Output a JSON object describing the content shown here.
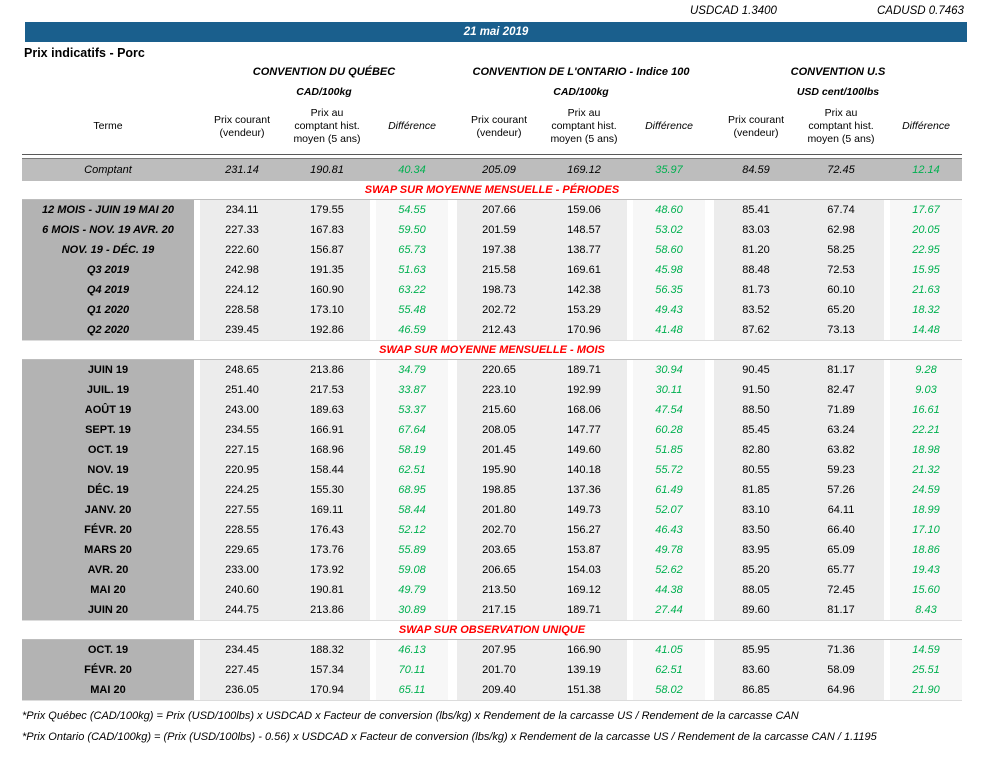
{
  "fx": {
    "usdcad": "USDCAD 1.3400",
    "cadusd": "CADUSD 0.7463"
  },
  "banner": {
    "date": "21 mai 2019"
  },
  "page_title": "Prix indicatifs - Porc",
  "colors": {
    "banner_blue": "#1a5f8d",
    "label_gray": "#b3b3b3",
    "comptant_gray": "#bdbdbd",
    "cell_gray": "#ececec",
    "diff_bg": "#f7f7f7",
    "positive_green": "#00b050",
    "section_red": "#ff0000"
  },
  "table": {
    "groups": [
      {
        "title": "CONVENTION DU QUÉBEC",
        "unit": "CAD/100kg"
      },
      {
        "title": "CONVENTION DE L'ONTARIO - Indice 100",
        "unit": "CAD/100kg"
      },
      {
        "title": "CONVENTION U.S",
        "unit": "USD cent/100lbs"
      }
    ],
    "columns": {
      "terme": "Terme",
      "prix_courant": "Prix courant\n(vendeur)",
      "prix_comptant": "Prix au\ncomptant hist.\nmoyen (5 ans)",
      "difference": "Différence"
    },
    "comptant": {
      "label": "Comptant",
      "values": [
        "231.14",
        "190.81",
        "40.34",
        "205.09",
        "169.12",
        "35.97",
        "84.59",
        "72.45",
        "12.14"
      ]
    },
    "sections": [
      {
        "header": "SWAP SUR MOYENNE MENSUELLE - PÉRIODES",
        "label_italic": true,
        "rows": [
          {
            "label": "12 MOIS -  JUIN 19 MAI 20",
            "values": [
              "234.11",
              "179.55",
              "54.55",
              "207.66",
              "159.06",
              "48.60",
              "85.41",
              "67.74",
              "17.67"
            ]
          },
          {
            "label": "6 MOIS -  NOV. 19 AVR. 20",
            "values": [
              "227.33",
              "167.83",
              "59.50",
              "201.59",
              "148.57",
              "53.02",
              "83.03",
              "62.98",
              "20.05"
            ]
          },
          {
            "label": "NOV. 19 -  DÉC. 19",
            "values": [
              "222.60",
              "156.87",
              "65.73",
              "197.38",
              "138.77",
              "58.60",
              "81.20",
              "58.25",
              "22.95"
            ]
          },
          {
            "label": "Q3 2019",
            "values": [
              "242.98",
              "191.35",
              "51.63",
              "215.58",
              "169.61",
              "45.98",
              "88.48",
              "72.53",
              "15.95"
            ]
          },
          {
            "label": "Q4 2019",
            "values": [
              "224.12",
              "160.90",
              "63.22",
              "198.73",
              "142.38",
              "56.35",
              "81.73",
              "60.10",
              "21.63"
            ]
          },
          {
            "label": "Q1 2020",
            "values": [
              "228.58",
              "173.10",
              "55.48",
              "202.72",
              "153.29",
              "49.43",
              "83.52",
              "65.20",
              "18.32"
            ]
          },
          {
            "label": "Q2 2020",
            "values": [
              "239.45",
              "192.86",
              "46.59",
              "212.43",
              "170.96",
              "41.48",
              "87.62",
              "73.13",
              "14.48"
            ]
          }
        ]
      },
      {
        "header": "SWAP SUR MOYENNE MENSUELLE - MOIS",
        "label_italic": false,
        "rows": [
          {
            "label": "JUIN 19",
            "values": [
              "248.65",
              "213.86",
              "34.79",
              "220.65",
              "189.71",
              "30.94",
              "90.45",
              "81.17",
              "9.28"
            ]
          },
          {
            "label": "JUIL. 19",
            "values": [
              "251.40",
              "217.53",
              "33.87",
              "223.10",
              "192.99",
              "30.11",
              "91.50",
              "82.47",
              "9.03"
            ]
          },
          {
            "label": "AOÛT 19",
            "values": [
              "243.00",
              "189.63",
              "53.37",
              "215.60",
              "168.06",
              "47.54",
              "88.50",
              "71.89",
              "16.61"
            ]
          },
          {
            "label": "SEPT. 19",
            "values": [
              "234.55",
              "166.91",
              "67.64",
              "208.05",
              "147.77",
              "60.28",
              "85.45",
              "63.24",
              "22.21"
            ]
          },
          {
            "label": "OCT. 19",
            "values": [
              "227.15",
              "168.96",
              "58.19",
              "201.45",
              "149.60",
              "51.85",
              "82.80",
              "63.82",
              "18.98"
            ]
          },
          {
            "label": "NOV. 19",
            "values": [
              "220.95",
              "158.44",
              "62.51",
              "195.90",
              "140.18",
              "55.72",
              "80.55",
              "59.23",
              "21.32"
            ]
          },
          {
            "label": "DÉC. 19",
            "values": [
              "224.25",
              "155.30",
              "68.95",
              "198.85",
              "137.36",
              "61.49",
              "81.85",
              "57.26",
              "24.59"
            ]
          },
          {
            "label": "JANV. 20",
            "values": [
              "227.55",
              "169.11",
              "58.44",
              "201.80",
              "149.73",
              "52.07",
              "83.10",
              "64.11",
              "18.99"
            ]
          },
          {
            "label": "FÉVR. 20",
            "values": [
              "228.55",
              "176.43",
              "52.12",
              "202.70",
              "156.27",
              "46.43",
              "83.50",
              "66.40",
              "17.10"
            ]
          },
          {
            "label": "MARS 20",
            "values": [
              "229.65",
              "173.76",
              "55.89",
              "203.65",
              "153.87",
              "49.78",
              "83.95",
              "65.09",
              "18.86"
            ]
          },
          {
            "label": "AVR. 20",
            "values": [
              "233.00",
              "173.92",
              "59.08",
              "206.65",
              "154.03",
              "52.62",
              "85.20",
              "65.77",
              "19.43"
            ]
          },
          {
            "label": "MAI 20",
            "values": [
              "240.60",
              "190.81",
              "49.79",
              "213.50",
              "169.12",
              "44.38",
              "88.05",
              "72.45",
              "15.60"
            ]
          },
          {
            "label": "JUIN 20",
            "values": [
              "244.75",
              "213.86",
              "30.89",
              "217.15",
              "189.71",
              "27.44",
              "89.60",
              "81.17",
              "8.43"
            ]
          }
        ]
      },
      {
        "header": "SWAP SUR OBSERVATION UNIQUE",
        "label_italic": false,
        "rows": [
          {
            "label": "OCT. 19",
            "values": [
              "234.45",
              "188.32",
              "46.13",
              "207.95",
              "166.90",
              "41.05",
              "85.95",
              "71.36",
              "14.59"
            ]
          },
          {
            "label": "FÉVR. 20",
            "values": [
              "227.45",
              "157.34",
              "70.11",
              "201.70",
              "139.19",
              "62.51",
              "83.60",
              "58.09",
              "25.51"
            ]
          },
          {
            "label": "MAI 20",
            "values": [
              "236.05",
              "170.94",
              "65.11",
              "209.40",
              "151.38",
              "58.02",
              "86.85",
              "64.96",
              "21.90"
            ]
          }
        ]
      }
    ]
  },
  "footnotes": [
    "*Prix Québec (CAD/100kg) = Prix (USD/100lbs) x USDCAD x Facteur de conversion (lbs/kg) x Rendement de la carcasse US / Rendement de la carcasse CAN",
    "*Prix Ontario (CAD/100kg) = (Prix (USD/100lbs) - 0.56) x USDCAD x Facteur de conversion (lbs/kg) x Rendement de la carcasse US / Rendement de la carcasse CAN / 1.1195"
  ]
}
